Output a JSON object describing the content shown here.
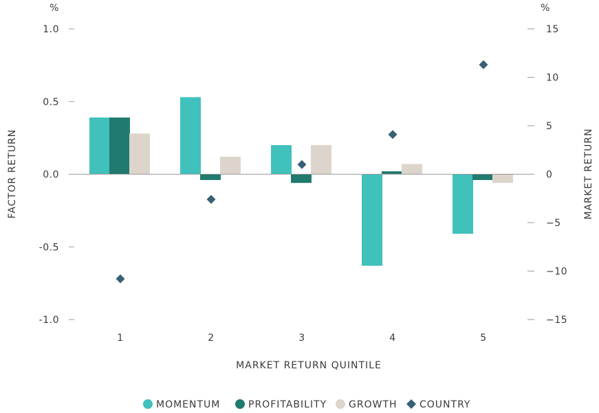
{
  "chart_data": {
    "type": "bar",
    "categories": [
      "1",
      "2",
      "3",
      "4",
      "5"
    ],
    "xlabel": "MARKET RETURN QUINTILE",
    "ylabel": "FACTOR RETURN",
    "y2label": "MARKET RETURN",
    "yunit": "%",
    "y2unit": "%",
    "ylim": [
      -1.0,
      1.0
    ],
    "y2lim": [
      -15,
      15
    ],
    "yticks": [
      "1.0",
      "0.5",
      "0.0",
      "-0.5",
      "-1.0"
    ],
    "y2ticks": [
      "15",
      "10",
      "5",
      "0",
      "-5",
      "-10",
      "-15"
    ],
    "series": [
      {
        "name": "MOMENTUM",
        "kind": "bar",
        "axis": "left",
        "color": "#40c1bc",
        "values": [
          0.39,
          0.53,
          0.2,
          -0.63,
          -0.41
        ]
      },
      {
        "name": "PROFITABILITY",
        "kind": "bar",
        "axis": "left",
        "color": "#217a6e",
        "values": [
          0.39,
          -0.04,
          -0.06,
          0.02,
          -0.04
        ]
      },
      {
        "name": "GROWTH",
        "kind": "bar",
        "axis": "left",
        "color": "#ddd5cb",
        "values": [
          0.28,
          0.12,
          0.2,
          0.07,
          -0.06
        ]
      },
      {
        "name": "COUNTRY",
        "kind": "scatter",
        "axis": "right",
        "marker": "diamond",
        "color": "#376076",
        "values": [
          -10.8,
          -2.6,
          1.0,
          4.1,
          11.3
        ]
      }
    ],
    "grid": false,
    "legend": "bottom"
  }
}
